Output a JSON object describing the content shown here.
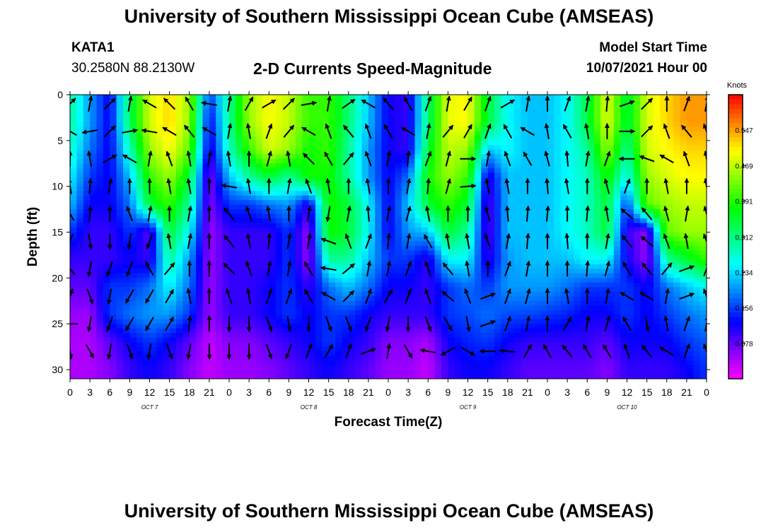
{
  "header": {
    "title": "University of Southern Mississippi Ocean Cube (AMSEAS)",
    "station": "KATA1",
    "coordinates": "30.2580N  88.2130W",
    "subtitle": "2-D Currents Speed-Magnitude",
    "model_start_label": "Model Start Time",
    "model_start_value": "10/07/2021 Hour 00"
  },
  "footer": {
    "title": "University of Southern Mississippi Ocean Cube (AMSEAS)"
  },
  "chart_data": {
    "type": "heatmap",
    "title": "2-D Currents Speed-Magnitude",
    "xlabel": "Forecast Time(Z)",
    "ylabel": "Depth (ft)",
    "x_ticks": [
      "0",
      "3",
      "6",
      "9",
      "12",
      "15",
      "18",
      "21",
      "0",
      "3",
      "6",
      "9",
      "12",
      "15",
      "18",
      "21",
      "0",
      "3",
      "6",
      "9",
      "12",
      "15",
      "18",
      "21",
      "0",
      "3",
      "6",
      "9",
      "12",
      "15",
      "18",
      "21",
      "0"
    ],
    "day_labels": [
      {
        "label": "OCT 7",
        "hour": 12
      },
      {
        "label": "OCT 8",
        "hour": 36
      },
      {
        "label": "OCT 9",
        "hour": 60
      },
      {
        "label": "OCT 10",
        "hour": 84
      }
    ],
    "xlim": [
      0,
      96
    ],
    "ylim": [
      31,
      0
    ],
    "y_ticks": [
      0,
      5,
      10,
      15,
      20,
      25,
      30
    ],
    "colorbar": {
      "unit": "Knots",
      "ticks": [
        0.547,
        0.469,
        0.391,
        0.312,
        0.234,
        0.156,
        0.078
      ],
      "range": [
        0.0,
        0.625
      ]
    },
    "depths_ft": [
      0,
      3,
      6,
      9,
      12,
      15,
      18,
      21,
      24,
      27,
      30
    ],
    "times_hr": [
      0,
      3,
      6,
      9,
      12,
      15,
      18,
      21,
      24,
      27,
      30,
      33,
      36,
      39,
      42,
      45,
      48,
      51,
      54,
      57,
      60,
      63,
      66,
      69,
      72,
      75,
      78,
      81,
      84,
      87,
      90,
      93,
      96
    ],
    "speed_knots": [
      [
        0.3,
        0.2,
        0.12,
        0.33,
        0.48,
        0.52,
        0.45,
        0.15,
        0.3,
        0.45,
        0.5,
        0.47,
        0.4,
        0.4,
        0.32,
        0.22,
        0.12,
        0.1,
        0.32,
        0.49,
        0.5,
        0.35,
        0.25,
        0.22,
        0.22,
        0.25,
        0.34,
        0.49,
        0.34,
        0.48,
        0.52,
        0.55,
        0.55
      ],
      [
        0.3,
        0.2,
        0.12,
        0.33,
        0.48,
        0.52,
        0.45,
        0.12,
        0.3,
        0.45,
        0.5,
        0.47,
        0.4,
        0.4,
        0.32,
        0.22,
        0.12,
        0.1,
        0.32,
        0.49,
        0.5,
        0.35,
        0.25,
        0.22,
        0.22,
        0.25,
        0.34,
        0.49,
        0.34,
        0.48,
        0.52,
        0.55,
        0.55
      ],
      [
        0.28,
        0.18,
        0.12,
        0.28,
        0.45,
        0.5,
        0.42,
        0.1,
        0.28,
        0.4,
        0.48,
        0.45,
        0.38,
        0.4,
        0.3,
        0.2,
        0.12,
        0.1,
        0.35,
        0.47,
        0.45,
        0.22,
        0.25,
        0.22,
        0.22,
        0.25,
        0.3,
        0.45,
        0.3,
        0.48,
        0.5,
        0.52,
        0.52
      ],
      [
        0.25,
        0.15,
        0.12,
        0.22,
        0.4,
        0.45,
        0.35,
        0.06,
        0.22,
        0.3,
        0.35,
        0.3,
        0.38,
        0.38,
        0.3,
        0.2,
        0.12,
        0.18,
        0.38,
        0.45,
        0.4,
        0.1,
        0.22,
        0.22,
        0.22,
        0.25,
        0.28,
        0.38,
        0.25,
        0.45,
        0.48,
        0.5,
        0.5
      ],
      [
        0.22,
        0.12,
        0.12,
        0.18,
        0.35,
        0.4,
        0.3,
        0.06,
        0.15,
        0.15,
        0.18,
        0.2,
        0.1,
        0.38,
        0.35,
        0.25,
        0.12,
        0.22,
        0.35,
        0.4,
        0.35,
        0.08,
        0.22,
        0.22,
        0.22,
        0.25,
        0.28,
        0.35,
        0.15,
        0.42,
        0.45,
        0.47,
        0.47
      ],
      [
        0.15,
        0.1,
        0.1,
        0.15,
        0.08,
        0.35,
        0.25,
        0.05,
        0.1,
        0.1,
        0.1,
        0.15,
        0.05,
        0.38,
        0.35,
        0.25,
        0.12,
        0.2,
        0.22,
        0.35,
        0.3,
        0.08,
        0.22,
        0.22,
        0.22,
        0.25,
        0.28,
        0.35,
        0.1,
        0.05,
        0.42,
        0.45,
        0.45
      ],
      [
        0.1,
        0.1,
        0.1,
        0.12,
        0.1,
        0.3,
        0.2,
        0.05,
        0.1,
        0.1,
        0.1,
        0.15,
        0.05,
        0.3,
        0.3,
        0.22,
        0.15,
        0.15,
        0.1,
        0.25,
        0.25,
        0.1,
        0.2,
        0.22,
        0.22,
        0.22,
        0.25,
        0.25,
        0.12,
        0.05,
        0.3,
        0.35,
        0.4
      ],
      [
        0.08,
        0.08,
        0.15,
        0.15,
        0.18,
        0.25,
        0.18,
        0.05,
        0.1,
        0.1,
        0.12,
        0.15,
        0.1,
        0.18,
        0.22,
        0.18,
        0.12,
        0.12,
        0.1,
        0.15,
        0.18,
        0.15,
        0.2,
        0.2,
        0.2,
        0.18,
        0.15,
        0.15,
        0.15,
        0.12,
        0.18,
        0.22,
        0.25
      ],
      [
        0.05,
        0.05,
        0.15,
        0.18,
        0.2,
        0.2,
        0.15,
        0.05,
        0.1,
        0.1,
        0.12,
        0.15,
        0.12,
        0.15,
        0.15,
        0.12,
        0.1,
        0.1,
        0.1,
        0.15,
        0.16,
        0.18,
        0.16,
        0.16,
        0.15,
        0.14,
        0.12,
        0.12,
        0.15,
        0.12,
        0.15,
        0.18,
        0.2
      ],
      [
        0.04,
        0.04,
        0.08,
        0.12,
        0.15,
        0.12,
        0.08,
        0.03,
        0.06,
        0.06,
        0.08,
        0.1,
        0.12,
        0.15,
        0.12,
        0.1,
        0.06,
        0.06,
        0.04,
        0.12,
        0.14,
        0.15,
        0.12,
        0.1,
        0.1,
        0.1,
        0.1,
        0.08,
        0.12,
        0.12,
        0.12,
        0.15,
        0.17
      ],
      [
        0.04,
        0.04,
        0.06,
        0.1,
        0.12,
        0.1,
        0.06,
        0.03,
        0.05,
        0.05,
        0.06,
        0.08,
        0.1,
        0.12,
        0.1,
        0.08,
        0.05,
        0.05,
        0.03,
        0.1,
        0.12,
        0.12,
        0.1,
        0.08,
        0.08,
        0.08,
        0.08,
        0.06,
        0.1,
        0.1,
        0.1,
        0.12,
        0.15
      ]
    ],
    "vector_depths_ft": [
      1,
      4,
      7,
      10,
      13,
      16,
      19,
      22,
      25,
      28
    ],
    "vector_times_hr": [
      0,
      3,
      6,
      9,
      12,
      15,
      18,
      21,
      24,
      27,
      30,
      33,
      36,
      39,
      42,
      45,
      48,
      51,
      54,
      57,
      60,
      63,
      66,
      69,
      72,
      75,
      78,
      81,
      84,
      87,
      90,
      93,
      96
    ],
    "direction_deg": [
      [
        45,
        10,
        45,
        10,
        300,
        315,
        330,
        280,
        10,
        30,
        60,
        45,
        80,
        10,
        55,
        300,
        320,
        330,
        20,
        10,
        30,
        20,
        60,
        10,
        0,
        20,
        10,
        5,
        70,
        45,
        0,
        20,
        10
      ],
      [
        300,
        260,
        45,
        80,
        280,
        300,
        320,
        300,
        10,
        350,
        20,
        40,
        300,
        340,
        320,
        340,
        330,
        300,
        10,
        40,
        30,
        20,
        330,
        300,
        350,
        330,
        350,
        0,
        90,
        45,
        340,
        320,
        340
      ],
      [
        0,
        350,
        60,
        300,
        10,
        340,
        350,
        10,
        350,
        0,
        15,
        350,
        315,
        330,
        40,
        340,
        10,
        5,
        20,
        15,
        90,
        10,
        340,
        330,
        345,
        355,
        10,
        20,
        270,
        290,
        300,
        340,
        350
      ],
      [
        350,
        5,
        10,
        0,
        0,
        350,
        350,
        0,
        280,
        350,
        0,
        10,
        340,
        350,
        0,
        350,
        0,
        10,
        5,
        15,
        85,
        350,
        350,
        0,
        355,
        350,
        0,
        345,
        20,
        0,
        350,
        0,
        350
      ],
      [
        330,
        5,
        0,
        340,
        10,
        0,
        10,
        0,
        320,
        340,
        350,
        0,
        10,
        190,
        10,
        355,
        10,
        15,
        350,
        0,
        0,
        345,
        355,
        5,
        5,
        0,
        5,
        350,
        310,
        320,
        345,
        10,
        345
      ],
      [
        200,
        170,
        180,
        190,
        200,
        350,
        10,
        0,
        320,
        350,
        5,
        10,
        10,
        290,
        340,
        20,
        5,
        10,
        330,
        350,
        350,
        340,
        10,
        5,
        0,
        355,
        0,
        10,
        320,
        310,
        340,
        350,
        340
      ],
      [
        320,
        190,
        200,
        200,
        330,
        40,
        0,
        0,
        315,
        340,
        10,
        10,
        330,
        280,
        50,
        10,
        10,
        20,
        340,
        320,
        350,
        0,
        20,
        10,
        0,
        0,
        5,
        15,
        330,
        320,
        40,
        70,
        20
      ],
      [
        20,
        160,
        190,
        210,
        210,
        30,
        350,
        0,
        340,
        350,
        20,
        20,
        330,
        300,
        45,
        20,
        30,
        20,
        340,
        310,
        340,
        70,
        20,
        15,
        0,
        350,
        0,
        10,
        300,
        300,
        10,
        70,
        340
      ],
      [
        270,
        190,
        200,
        210,
        210,
        30,
        5,
        0,
        180,
        180,
        160,
        170,
        180,
        160,
        160,
        200,
        190,
        180,
        160,
        150,
        170,
        70,
        20,
        10,
        0,
        30,
        10,
        15,
        330,
        170,
        350,
        20,
        10
      ],
      [
        170,
        150,
        190,
        160,
        190,
        160,
        190,
        180,
        180,
        180,
        160,
        200,
        20,
        30,
        20,
        70,
        10,
        150,
        280,
        240,
        120,
        270,
        275,
        30,
        330,
        320,
        330,
        330,
        340,
        320,
        300,
        20,
        340
      ]
    ]
  }
}
